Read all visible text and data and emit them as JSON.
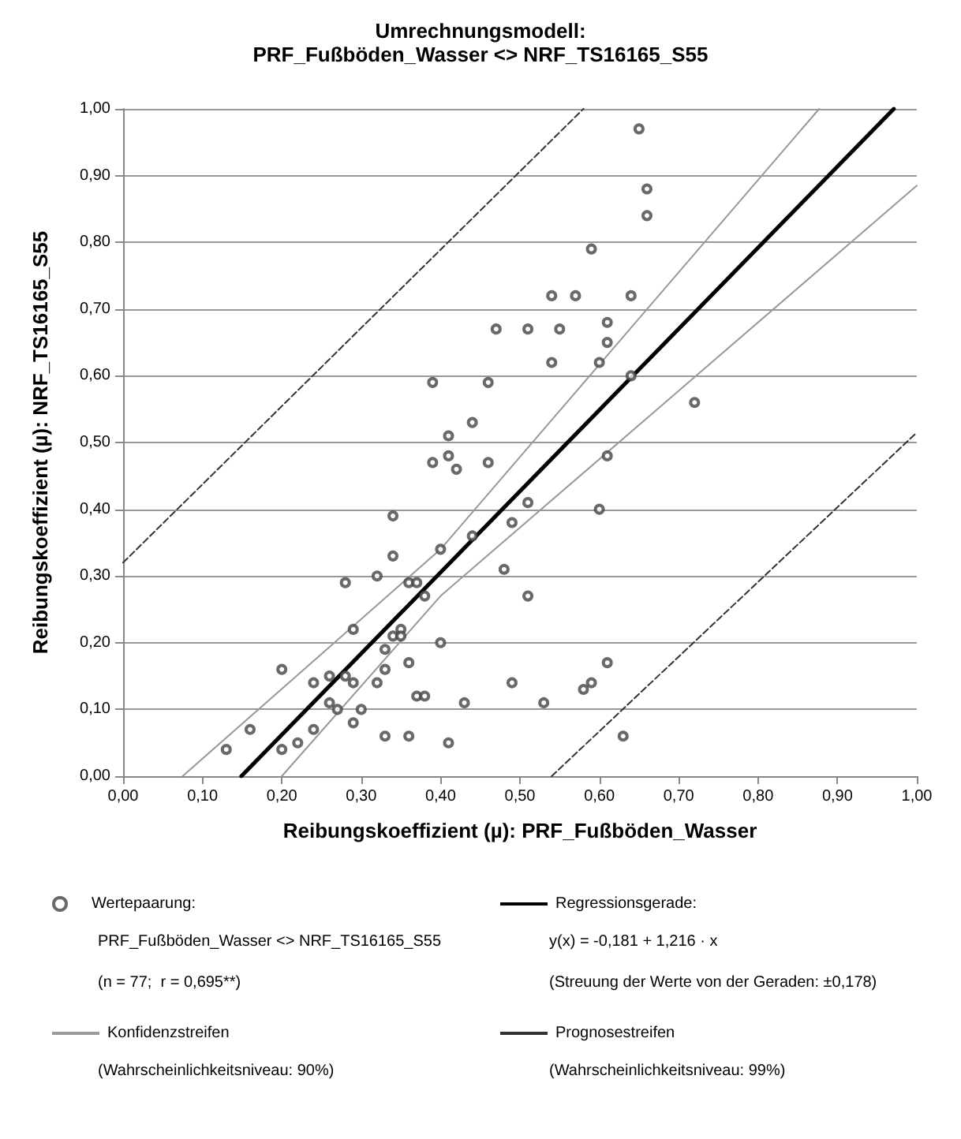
{
  "chart_data": {
    "type": "scatter",
    "title": "Umrechnungsmodell:",
    "subtitle": "PRF_Fußböden_Wasser <> NRF_TS16165_S55",
    "xlabel": "Reibungskoeffizient (µ): PRF_Fußböden_Wasser",
    "ylabel": "Reibungskoeffizient (µ): NRF_TS16165_S55",
    "xlim": [
      0,
      1
    ],
    "ylim": [
      0,
      1
    ],
    "xticks": [
      {
        "value": 0,
        "label": "0,00"
      },
      {
        "value": 0.1,
        "label": "0,10"
      },
      {
        "value": 0.2,
        "label": "0,20"
      },
      {
        "value": 0.3,
        "label": "0,30"
      },
      {
        "value": 0.4,
        "label": "0,40"
      },
      {
        "value": 0.5,
        "label": "0,50"
      },
      {
        "value": 0.6,
        "label": "0,60"
      },
      {
        "value": 0.7,
        "label": "0,70"
      },
      {
        "value": 0.8,
        "label": "0,80"
      },
      {
        "value": 0.9,
        "label": "0,90"
      },
      {
        "value": 1,
        "label": "1,00"
      }
    ],
    "yticks": [
      {
        "value": 0,
        "label": "0,00"
      },
      {
        "value": 0.1,
        "label": "0,10"
      },
      {
        "value": 0.2,
        "label": "0,20"
      },
      {
        "value": 0.3,
        "label": "0,30"
      },
      {
        "value": 0.4,
        "label": "0,40"
      },
      {
        "value": 0.5,
        "label": "0,50"
      },
      {
        "value": 0.6,
        "label": "0,60"
      },
      {
        "value": 0.7,
        "label": "0,70"
      },
      {
        "value": 0.8,
        "label": "0,80"
      },
      {
        "value": 0.9,
        "label": "0,90"
      },
      {
        "value": 1,
        "label": "1,00"
      }
    ],
    "grid": "y",
    "legend": "bottom",
    "series": [
      {
        "name": "Wertepaarung:",
        "marker": "circle",
        "color": "#444444",
        "x": [
          0.65,
          0.66,
          0.66,
          0.59,
          0.54,
          0.57,
          0.64,
          0.47,
          0.51,
          0.55,
          0.61,
          0.61,
          0.54,
          0.6,
          0.64,
          0.72,
          0.61,
          0.39,
          0.46,
          0.44,
          0.41,
          0.39,
          0.41,
          0.46,
          0.42,
          0.51,
          0.49,
          0.6,
          0.34,
          0.44,
          0.34,
          0.4,
          0.32,
          0.28,
          0.36,
          0.37,
          0.38,
          0.48,
          0.51,
          0.29,
          0.35,
          0.34,
          0.35,
          0.33,
          0.4,
          0.2,
          0.36,
          0.24,
          0.26,
          0.28,
          0.29,
          0.33,
          0.32,
          0.49,
          0.26,
          0.27,
          0.37,
          0.38,
          0.43,
          0.3,
          0.16,
          0.24,
          0.29,
          0.13,
          0.2,
          0.22,
          0.33,
          0.36,
          0.41,
          0.53,
          0.58,
          0.59,
          0.61,
          0.63
        ],
        "values": [
          0.97,
          0.88,
          0.84,
          0.79,
          0.72,
          0.72,
          0.72,
          0.67,
          0.67,
          0.67,
          0.68,
          0.65,
          0.62,
          0.62,
          0.6,
          0.56,
          0.48,
          0.59,
          0.59,
          0.53,
          0.51,
          0.47,
          0.48,
          0.47,
          0.46,
          0.41,
          0.38,
          0.4,
          0.39,
          0.36,
          0.33,
          0.34,
          0.3,
          0.29,
          0.29,
          0.29,
          0.27,
          0.31,
          0.27,
          0.22,
          0.22,
          0.21,
          0.21,
          0.19,
          0.2,
          0.16,
          0.17,
          0.14,
          0.15,
          0.15,
          0.14,
          0.16,
          0.14,
          0.14,
          0.11,
          0.1,
          0.12,
          0.12,
          0.11,
          0.1,
          0.07,
          0.07,
          0.08,
          0.04,
          0.04,
          0.05,
          0.06,
          0.06,
          0.05,
          0.11,
          0.13,
          0.14,
          0.17,
          0.06
        ]
      },
      {
        "name": "Regressionsgerade:",
        "type": "line",
        "marker": "none",
        "line_style": "solid",
        "color": "#000000",
        "x": [
          0.149,
          0.971
        ],
        "values": [
          0,
          1
        ]
      },
      {
        "name": "Konfidenzstreifen",
        "type": "line",
        "marker": "none",
        "line_style": "solid",
        "color": "#999999",
        "x": [
          0.075,
          0.4,
          0.877
        ],
        "values": [
          0,
          0.34,
          1
        ]
      },
      {
        "type": "line",
        "marker": "none",
        "line_style": "solid",
        "color": "#999999",
        "x": [
          0.2,
          0.4,
          1.0
        ],
        "values": [
          0,
          0.27,
          0.885
        ]
      },
      {
        "name": "Prognosestreifen",
        "type": "line",
        "marker": "none",
        "line_style": "dashed",
        "color": "#333333",
        "x": [
          0,
          0.58
        ],
        "values": [
          0.32,
          1
        ]
      },
      {
        "type": "line",
        "marker": "none",
        "line_style": "dashed",
        "color": "#333333",
        "x": [
          0.54,
          1.0
        ],
        "values": [
          0,
          0.515
        ]
      }
    ],
    "annotations": [
      "PRF_Fußböden_Wasser <> NRF_TS16165_S55",
      "(n = 77;  r = 0,695**)",
      "y(x) = -0,181 + 1,216 · x",
      "(Streuung der Werte von der Geraden: ±0,178)",
      "(Wahrscheinlichkeitsniveau: 90%)",
      "(Wahrscheinlichkeitsniveau: 99%)"
    ]
  }
}
